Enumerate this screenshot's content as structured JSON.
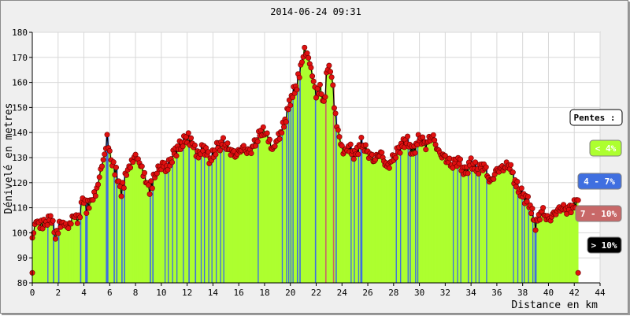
{
  "chart_data": {
    "type": "area",
    "title": "2014-06-24 09:31",
    "xlabel": "Distance en km",
    "ylabel": "Dénivelé en metres",
    "xlim": [
      0,
      44
    ],
    "ylim": [
      80,
      180
    ],
    "x_ticks": [
      0,
      2,
      4,
      6,
      8,
      10,
      12,
      14,
      16,
      18,
      20,
      22,
      24,
      26,
      28,
      30,
      32,
      34,
      36,
      38,
      40,
      42,
      44
    ],
    "y_ticks": [
      80,
      90,
      100,
      110,
      120,
      130,
      140,
      150,
      160,
      170,
      180
    ],
    "grid": true,
    "legend": {
      "title": "Pentes :",
      "placement": "right",
      "items": [
        {
          "label": "< 4%",
          "color": "#adff2f",
          "text_color": "#ffffff"
        },
        {
          "label": "4 - 7%",
          "color": "#3f6fe0",
          "text_color": "#ffffff"
        },
        {
          "label": "7 - 10%",
          "color": "#c86868",
          "text_color": "#ffffff"
        },
        {
          "label": "> 10%",
          "color": "#000000",
          "text_color": "#ffffff"
        }
      ]
    },
    "series": [
      {
        "x": [
          0,
          0.3,
          0.6,
          1,
          1.5,
          1.8,
          2.1,
          2.4,
          2.8,
          3.2,
          3.6,
          3.9,
          4.2,
          4.6,
          5,
          5.3,
          5.6,
          5.8,
          6.1,
          6.5,
          6.9,
          7.3,
          7.6,
          8,
          8.4,
          8.8,
          9.1,
          9.5,
          10,
          10.5,
          11,
          11.5,
          12,
          12.4,
          12.8,
          13.3,
          13.8,
          14.3,
          14.8,
          15.3,
          15.8,
          16.3,
          16.8,
          17.3,
          17.8,
          18.2,
          18.6,
          19,
          19.5,
          20,
          20.5,
          20.8,
          21.1,
          21.4,
          21.7,
          22,
          22.3,
          22.6,
          22.9,
          23.2,
          23.5,
          23.8,
          24.1,
          24.5,
          25,
          25.5,
          26,
          26.5,
          27,
          27.5,
          28,
          28.5,
          29,
          29.5,
          30,
          30.5,
          31,
          31.5,
          32,
          32.5,
          33,
          33.5,
          34,
          34.5,
          35,
          35.5,
          36,
          36.5,
          37,
          37.5,
          38,
          38.5,
          39,
          39.5,
          40,
          40.5,
          41,
          41.5,
          42,
          42.3
        ],
        "y": [
          98,
          105,
          103,
          104,
          106,
          98,
          103,
          104,
          102,
          107,
          105,
          114,
          110,
          113,
          117,
          125,
          131,
          138,
          129,
          124,
          116,
          124,
          127,
          131,
          127,
          121,
          117,
          123,
          127,
          126,
          132,
          135,
          138,
          136,
          131,
          134,
          129,
          134,
          136,
          133,
          131,
          134,
          132,
          136,
          141,
          139,
          133,
          137,
          143,
          153,
          159,
          166,
          173,
          170,
          163,
          155,
          158,
          151,
          167,
          163,
          146,
          138,
          132,
          134,
          131,
          136,
          132,
          129,
          132,
          126,
          130,
          134,
          137,
          132,
          138,
          135,
          139,
          132,
          130,
          127,
          129,
          124,
          128,
          125,
          127,
          120,
          125,
          126,
          127,
          119,
          115,
          112,
          103,
          109,
          105,
          108,
          110,
          109,
          111,
          113
        ]
      }
    ],
    "end_markers": [
      {
        "x": 0,
        "y": 84
      },
      {
        "x": 42.3,
        "y": 84
      }
    ]
  }
}
